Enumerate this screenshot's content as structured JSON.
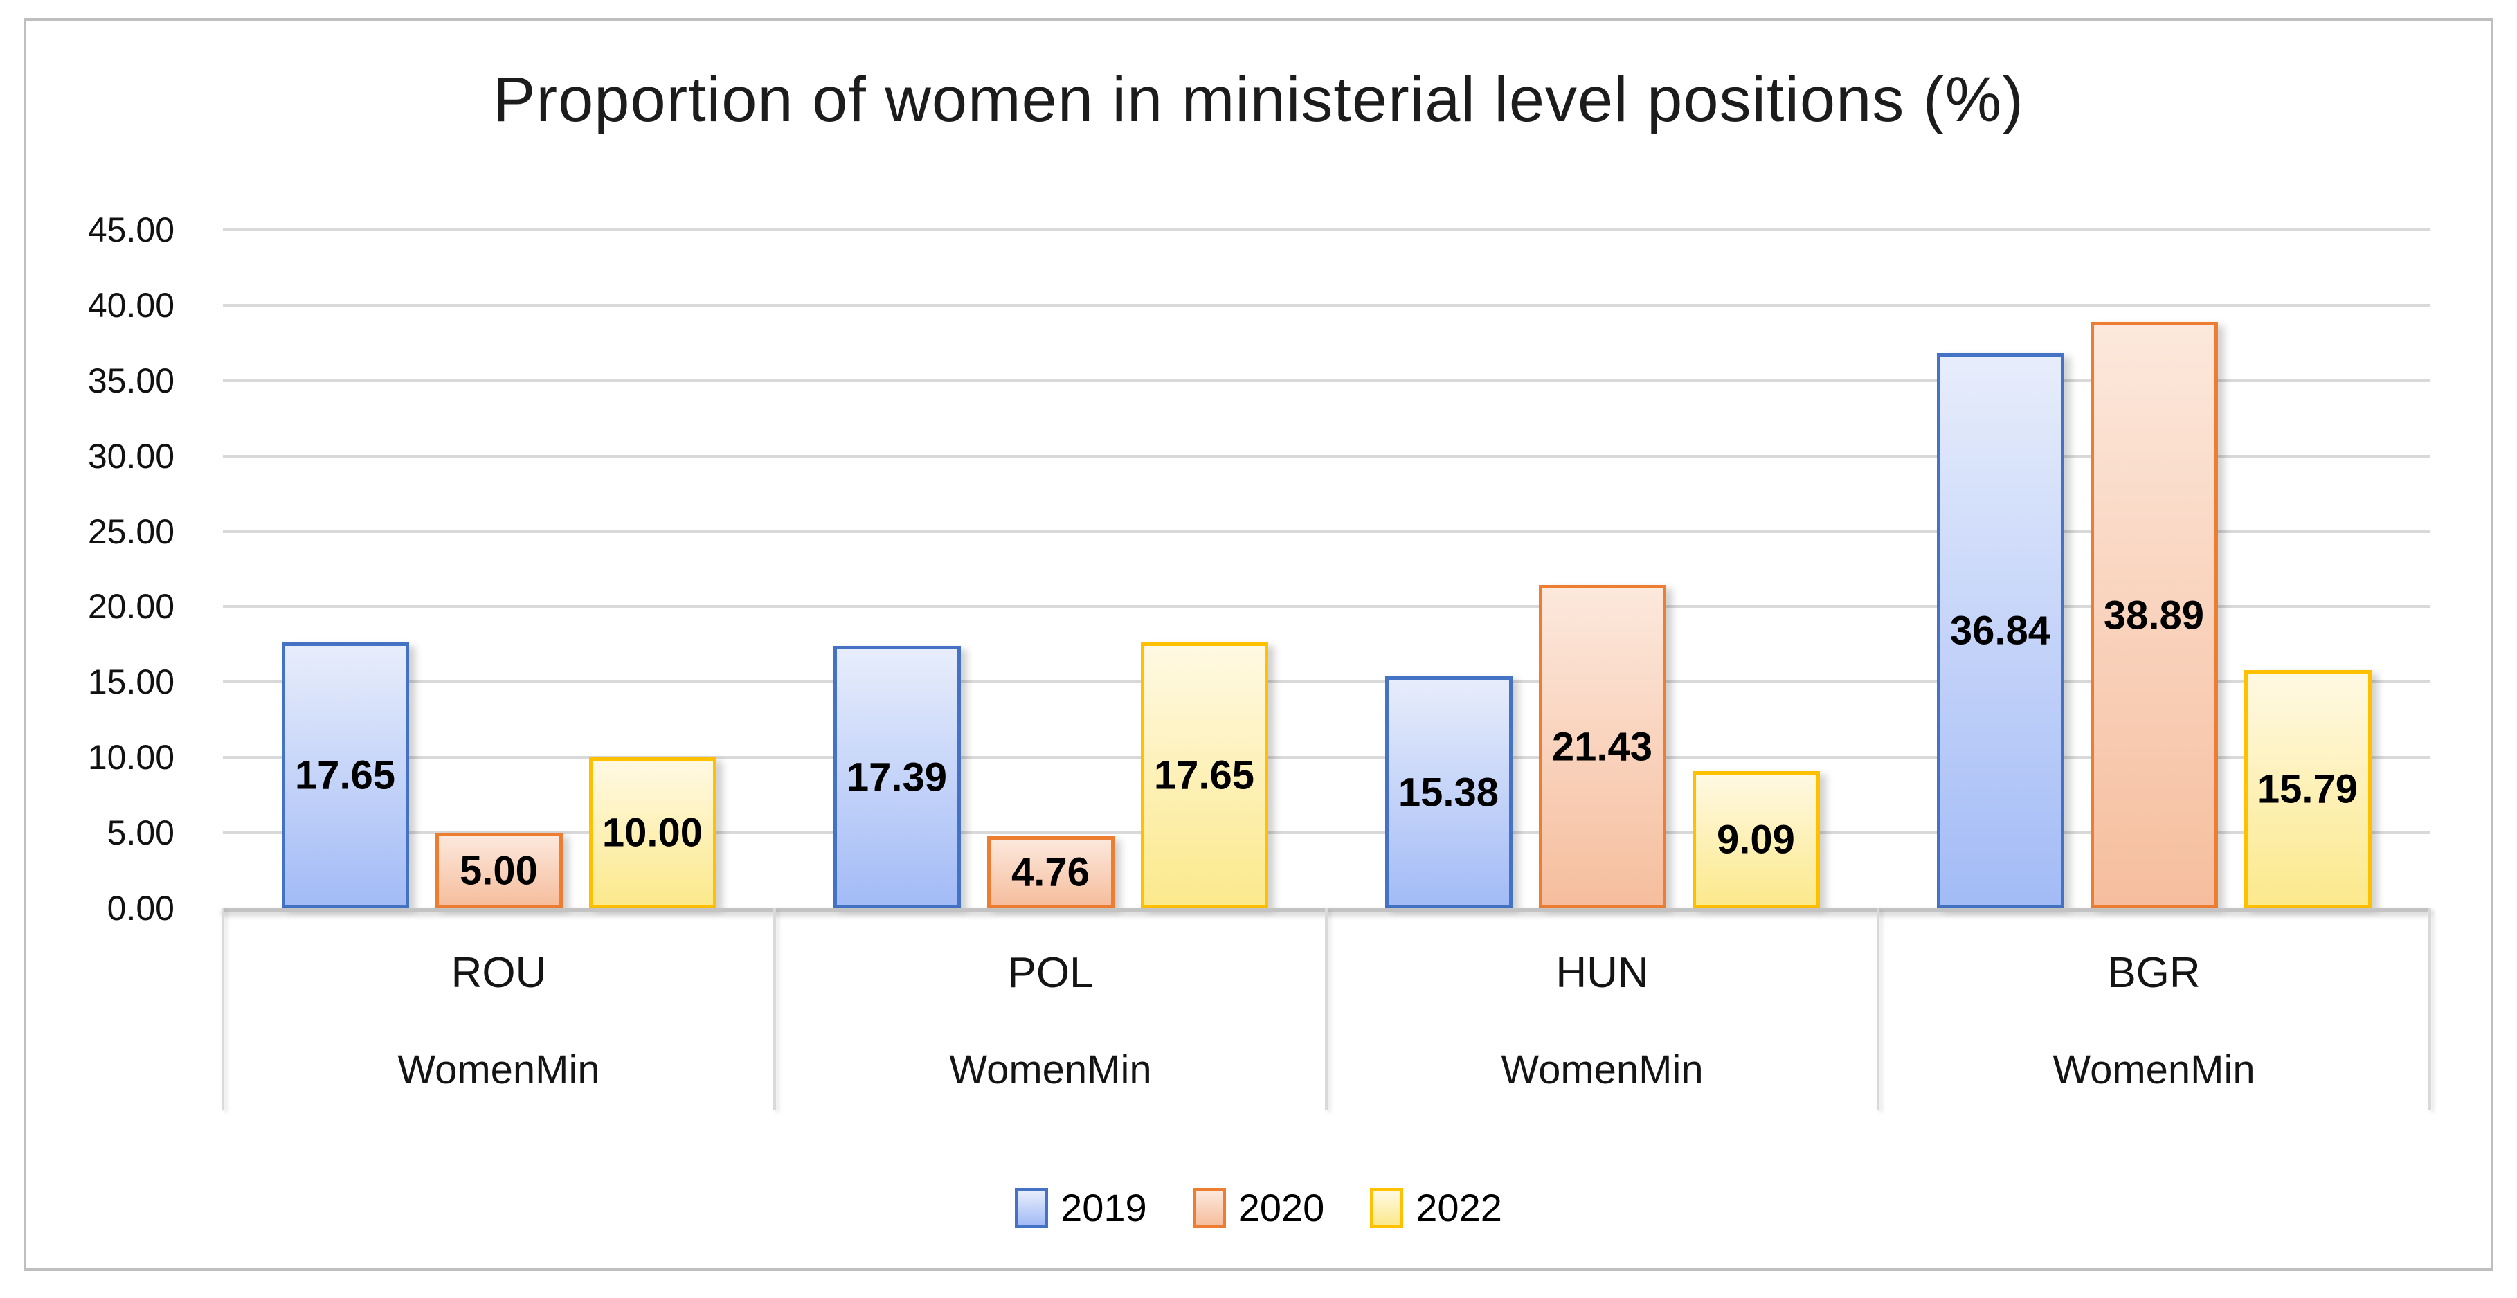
{
  "chart_data": {
    "type": "bar",
    "title": "Proportion of women in ministerial level positions (%)",
    "categories": [
      "ROU",
      "POL",
      "HUN",
      "BGR"
    ],
    "category_sublabel": "WomenMin",
    "series": [
      {
        "name": "2019",
        "values": [
          17.65,
          17.39,
          15.38,
          36.84
        ],
        "labels": [
          "17.65",
          "17.39",
          "15.38",
          "36.84"
        ],
        "border_color": "#4472C4",
        "fill_top": "#E7EDFB",
        "fill_bottom": "#A3BBF6"
      },
      {
        "name": "2020",
        "values": [
          5.0,
          4.76,
          21.43,
          38.89
        ],
        "labels": [
          "5.00",
          "4.76",
          "21.43",
          "38.89"
        ],
        "border_color": "#ED7D31",
        "fill_top": "#FCE8DC",
        "fill_bottom": "#F6BE9E"
      },
      {
        "name": "2022",
        "values": [
          10.0,
          17.65,
          9.09,
          15.79
        ],
        "labels": [
          "10.00",
          "17.65",
          "9.09",
          "15.79"
        ],
        "border_color": "#FFC000",
        "fill_top": "#FFF9E3",
        "fill_bottom": "#FBE98C"
      }
    ],
    "ylim": [
      0,
      45
    ],
    "ytick_step": 5,
    "ytick_labels": [
      "0.00",
      "5.00",
      "10.00",
      "15.00",
      "20.00",
      "25.00",
      "30.00",
      "35.00",
      "40.00",
      "45.00"
    ],
    "grid": true,
    "legend_position": "bottom",
    "legend_entries": [
      "2019",
      "2020",
      "2022"
    ],
    "gridline_color": "#D9D9D9",
    "axis_line_color": "#C3C3C3",
    "frame_border_color": "#BFBFBF"
  }
}
